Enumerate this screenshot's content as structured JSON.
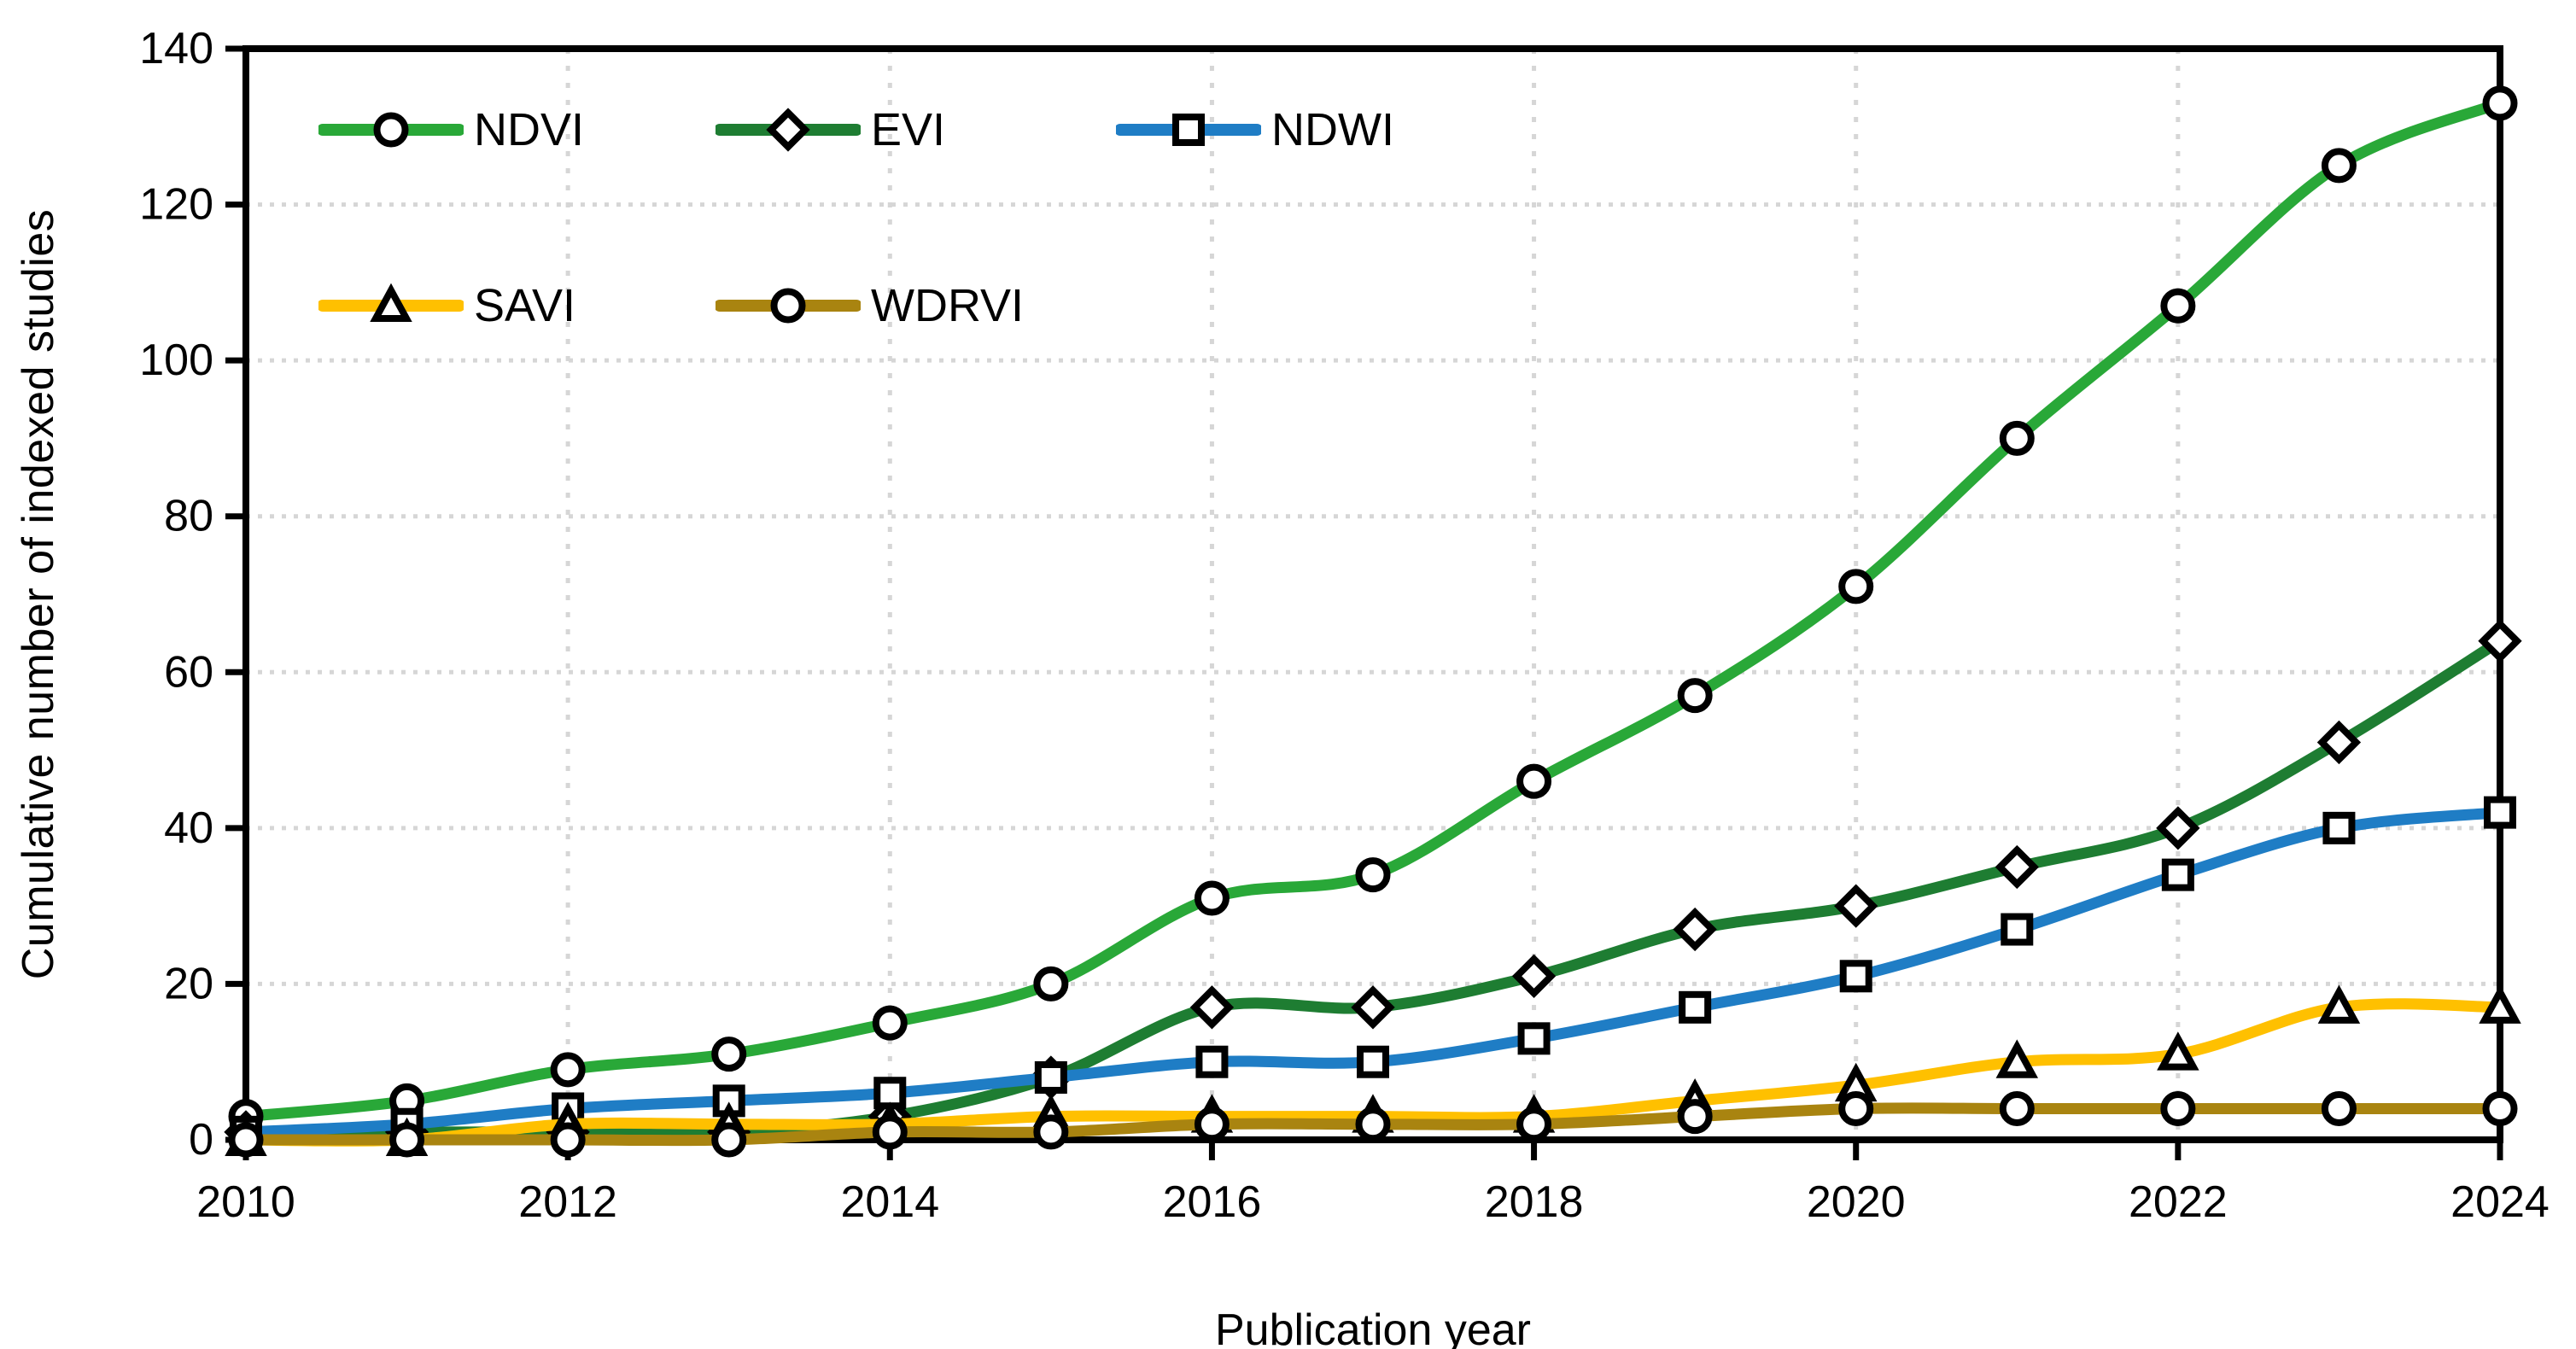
{
  "chart_data": {
    "type": "line",
    "title": "",
    "xlabel": "Publication year",
    "ylabel": "Cumulative number of indexed studies",
    "x": [
      2010,
      2011,
      2012,
      2013,
      2014,
      2015,
      2016,
      2017,
      2018,
      2019,
      2020,
      2021,
      2022,
      2023,
      2024
    ],
    "x_tick_labels": [
      "2010",
      "2012",
      "2014",
      "2016",
      "2018",
      "2020",
      "2022",
      "2024"
    ],
    "x_ticks": [
      2010,
      2012,
      2014,
      2016,
      2018,
      2020,
      2022,
      2024
    ],
    "ylim": [
      0,
      140
    ],
    "y_ticks": [
      0,
      20,
      40,
      60,
      80,
      100,
      120,
      140
    ],
    "grid": "dotted gray horizontal and vertical",
    "legend_position": "top-left inside plot, two rows",
    "series": [
      {
        "name": "NDVI",
        "marker": "circle",
        "color": "#29A838",
        "values": [
          3,
          5,
          9,
          11,
          15,
          20,
          31,
          34,
          46,
          57,
          71,
          90,
          107,
          125,
          133
        ]
      },
      {
        "name": "EVI",
        "marker": "diamond",
        "color": "#1E7D32",
        "values": [
          1,
          1,
          1,
          1,
          3,
          8,
          17,
          17,
          21,
          27,
          30,
          35,
          40,
          51,
          64
        ]
      },
      {
        "name": "NDWI",
        "marker": "square",
        "color": "#1F7DC5",
        "values": [
          1,
          2,
          4,
          5,
          6,
          8,
          10,
          10,
          13,
          17,
          21,
          27,
          34,
          40,
          42
        ]
      },
      {
        "name": "SAVI",
        "marker": "triangle",
        "color": "#FFC000",
        "values": [
          0,
          0,
          2,
          2,
          2,
          3,
          3,
          3,
          3,
          5,
          7,
          10,
          11,
          17,
          17
        ]
      },
      {
        "name": "WDRVI",
        "marker": "circle",
        "color": "#A98410",
        "values": [
          0,
          0,
          0,
          0,
          1,
          1,
          2,
          2,
          2,
          3,
          4,
          4,
          4,
          4,
          4
        ]
      }
    ],
    "axis_color": "#000000",
    "gridline_color": "#D6D6D6",
    "marker_fill": "#FFFFFF",
    "marker_stroke": "#000000"
  },
  "layout_note_values_visible_only": true
}
